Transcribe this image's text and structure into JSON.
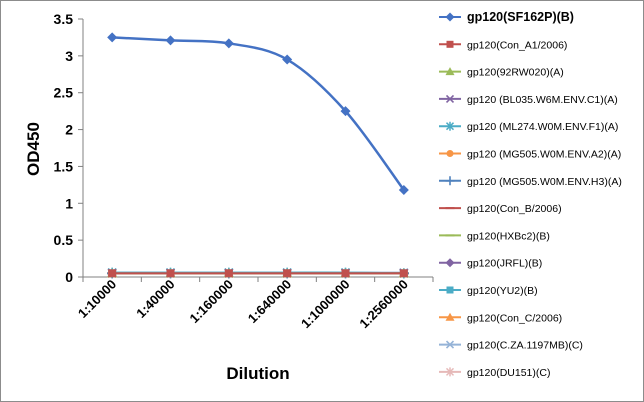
{
  "chart_data": {
    "type": "line",
    "xlabel": "Dilution",
    "ylabel": "OD450",
    "categories": [
      "1:10000",
      "1:40000",
      "1:160000",
      "1:640000",
      "1:1000000",
      "1:2560000"
    ],
    "y_ticks": [
      "0",
      "0.5",
      "1",
      "1.5",
      "2",
      "2.5",
      "3",
      "3.5"
    ],
    "ylim": [
      0,
      3.5
    ],
    "grid": false,
    "legend_position": "right",
    "series": [
      {
        "name": "gp120(SF162P)(B)",
        "color": "#4472C4",
        "marker": "diamond",
        "bold": true,
        "values": [
          3.25,
          3.21,
          3.17,
          2.95,
          2.25,
          1.18
        ]
      },
      {
        "name": "gp120(Con_A1/2006)",
        "color": "#C0504D",
        "marker": "square",
        "values": [
          0.05,
          0.05,
          0.05,
          0.05,
          0.05,
          0.05
        ]
      },
      {
        "name": "gp120(92RW020)(A)",
        "color": "#9BBB59",
        "marker": "triangle",
        "values": [
          0.05,
          0.05,
          0.05,
          0.05,
          0.05,
          0.05
        ]
      },
      {
        "name": "gp120 (BL035.W6M.ENV.C1)(A)",
        "color": "#8064A2",
        "marker": "x",
        "values": [
          0.05,
          0.05,
          0.05,
          0.05,
          0.05,
          0.05
        ]
      },
      {
        "name": "gp120 (ML274.W0M.ENV.F1)(A)",
        "color": "#4BACC6",
        "marker": "star",
        "values": [
          0.06,
          0.06,
          0.06,
          0.06,
          0.06,
          0.05
        ]
      },
      {
        "name": "gp120 (MG505.W0M.ENV.A2)(A)",
        "color": "#F79646",
        "marker": "circle",
        "values": [
          0.05,
          0.05,
          0.05,
          0.05,
          0.05,
          0.05
        ]
      },
      {
        "name": "gp120 (MG505.W0M.ENV.H3)(A)",
        "color": "#4F81BD",
        "marker": "plus",
        "values": [
          0.05,
          0.05,
          0.05,
          0.05,
          0.05,
          0.05
        ]
      },
      {
        "name": "gp120(Con_B/2006)",
        "color": "#C0504D",
        "marker": "dash",
        "values": [
          0.05,
          0.05,
          0.05,
          0.05,
          0.05,
          0.05
        ]
      },
      {
        "name": "gp120(HXBc2)(B)",
        "color": "#9BBB59",
        "marker": "dash",
        "values": [
          0.05,
          0.05,
          0.05,
          0.05,
          0.05,
          0.05
        ]
      },
      {
        "name": "gp120(JRFL)(B)",
        "color": "#8064A2",
        "marker": "diamond",
        "values": [
          0.05,
          0.05,
          0.05,
          0.05,
          0.05,
          0.05
        ]
      },
      {
        "name": "gp120(YU2)(B)",
        "color": "#4BACC6",
        "marker": "square",
        "values": [
          0.05,
          0.05,
          0.05,
          0.05,
          0.05,
          0.05
        ]
      },
      {
        "name": "gp120(Con_C/2006)",
        "color": "#F79646",
        "marker": "triangle",
        "values": [
          0.05,
          0.05,
          0.05,
          0.05,
          0.05,
          0.05
        ]
      },
      {
        "name": "gp120(C.ZA.1197MB)(C)",
        "color": "#95B3D7",
        "marker": "x",
        "values": [
          0.06,
          0.06,
          0.06,
          0.06,
          0.06,
          0.06
        ]
      },
      {
        "name": "gp120(DU151)(C)",
        "color": "#E6B9B8",
        "marker": "star",
        "values": [
          0.05,
          0.05,
          0.05,
          0.05,
          0.05,
          0.05
        ]
      }
    ]
  }
}
